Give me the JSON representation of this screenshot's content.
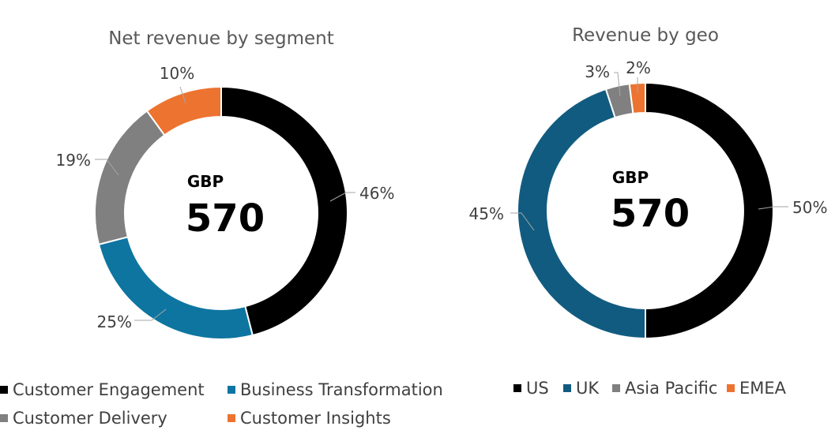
{
  "chart_data": [
    {
      "type": "pie",
      "donut": true,
      "title": "Net revenue by segment",
      "center": {
        "currency": "GBP",
        "value": "570"
      },
      "slices": [
        {
          "name": "Customer Engagement",
          "value": 46,
          "label": "46%",
          "color": "#000000"
        },
        {
          "name": "Business Transformation",
          "value": 25,
          "label": "25%",
          "color": "#0e75a0"
        },
        {
          "name": "Customer Delivery",
          "value": 19,
          "label": "19%",
          "color": "#808080"
        },
        {
          "name": "Customer Insights",
          "value": 10,
          "label": "10%",
          "color": "#ed7330"
        }
      ],
      "legend": [
        "Customer Engagement",
        "Business Transformation",
        "Customer Delivery",
        "Customer Insights"
      ]
    },
    {
      "type": "pie",
      "donut": true,
      "title": "Revenue by geo",
      "center": {
        "currency": "GBP",
        "value": "570"
      },
      "slices": [
        {
          "name": "US",
          "value": 50,
          "label": "50%",
          "color": "#000000"
        },
        {
          "name": "UK",
          "value": 45,
          "label": "45%",
          "color": "#125b80"
        },
        {
          "name": "Asia Pacific",
          "value": 3,
          "label": "3%",
          "color": "#808080"
        },
        {
          "name": "EMEA",
          "value": 2,
          "label": "2%",
          "color": "#ed7330"
        }
      ],
      "legend": [
        "US",
        "UK",
        "Asia Pacific",
        "EMEA"
      ]
    }
  ]
}
